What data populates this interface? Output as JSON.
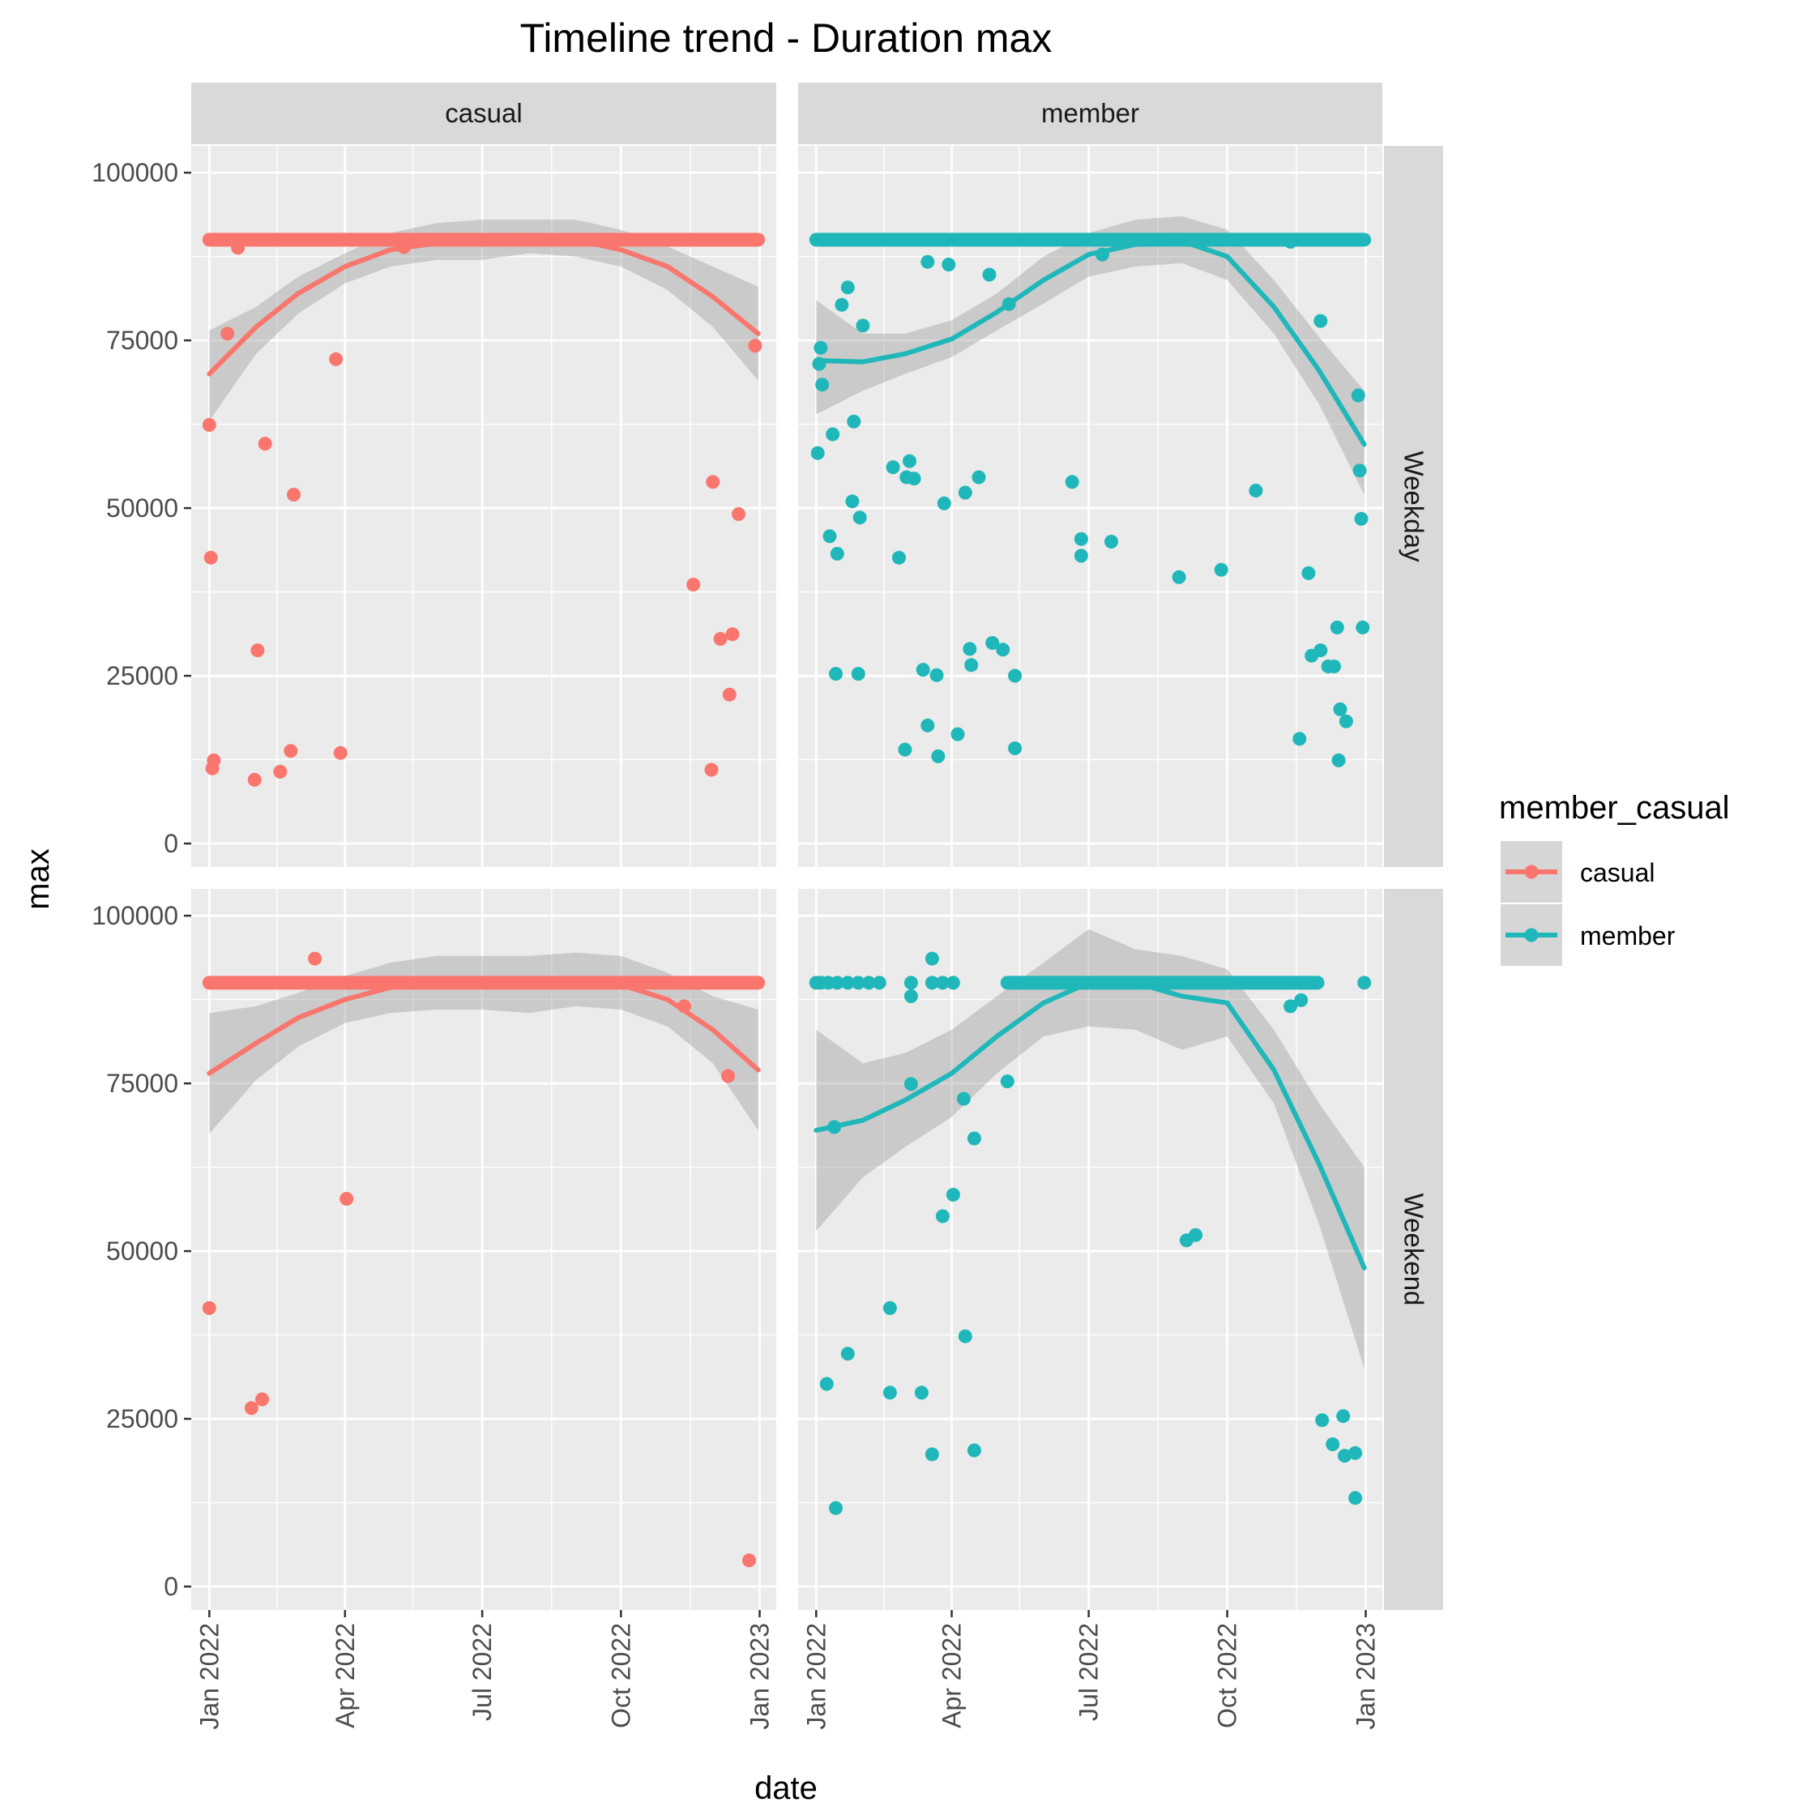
{
  "chart_data": {
    "type": "scatter",
    "title": "Timeline trend - Duration max",
    "xlabel": "date",
    "ylabel": "max",
    "facet_columns": [
      "casual",
      "member"
    ],
    "facet_rows": [
      "Weekday",
      "Weekend"
    ],
    "x_ticks": [
      "Jan 2022",
      "Apr 2022",
      "Jul 2022",
      "Oct 2022",
      "Jan 2023"
    ],
    "x_range": [
      "2021-12-20",
      "2023-01-12"
    ],
    "y_ticks": [
      "0",
      "25000",
      "50000",
      "75000",
      "100000"
    ],
    "ylim": [
      -3500,
      104000
    ],
    "grid": true,
    "smoothing": "loess with confidence band",
    "legend": {
      "title": "member_casual",
      "position": "right",
      "entries": [
        "casual",
        "member"
      ]
    },
    "colors": {
      "casual": "#f8766d",
      "member": "#1fb7b9",
      "panel_background": "#ebebeb",
      "strip_background": "#d9d9d9",
      "band": "#999999"
    },
    "panels": [
      {
        "column": "casual",
        "row": "Weekday",
        "series": "casual",
        "flat_line": {
          "y": 90000,
          "from": "2022-01-01",
          "to": "2022-12-31"
        },
        "points": [
          {
            "x": "2022-01-01",
            "y": 62400
          },
          {
            "x": "2022-01-02",
            "y": 42600
          },
          {
            "x": "2022-01-03",
            "y": 11200
          },
          {
            "x": "2022-01-04",
            "y": 12400
          },
          {
            "x": "2022-01-13",
            "y": 76000
          },
          {
            "x": "2022-01-20",
            "y": 88800
          },
          {
            "x": "2022-01-31",
            "y": 9500
          },
          {
            "x": "2022-02-02",
            "y": 28800
          },
          {
            "x": "2022-02-07",
            "y": 59600
          },
          {
            "x": "2022-02-17",
            "y": 10700
          },
          {
            "x": "2022-02-24",
            "y": 13800
          },
          {
            "x": "2022-02-26",
            "y": 52000
          },
          {
            "x": "2022-03-26",
            "y": 72200
          },
          {
            "x": "2022-03-29",
            "y": 13500
          },
          {
            "x": "2022-05-10",
            "y": 88900
          },
          {
            "x": "2022-11-18",
            "y": 38600
          },
          {
            "x": "2022-11-30",
            "y": 11000
          },
          {
            "x": "2022-12-01",
            "y": 53900
          },
          {
            "x": "2022-12-06",
            "y": 30500
          },
          {
            "x": "2022-12-12",
            "y": 22200
          },
          {
            "x": "2022-12-14",
            "y": 31200
          },
          {
            "x": "2022-12-18",
            "y": 49100
          },
          {
            "x": "2022-12-29",
            "y": 74200
          }
        ],
        "smooth": [
          {
            "x": "2022-01-01",
            "y": 70000,
            "lo": 63000,
            "hi": 76500
          },
          {
            "x": "2022-02-01",
            "y": 77000,
            "lo": 73000,
            "hi": 80000
          },
          {
            "x": "2022-03-01",
            "y": 82000,
            "lo": 79000,
            "hi": 84500
          },
          {
            "x": "2022-04-01",
            "y": 86000,
            "lo": 83500,
            "hi": 88000
          },
          {
            "x": "2022-05-01",
            "y": 88500,
            "lo": 86000,
            "hi": 91000
          },
          {
            "x": "2022-06-01",
            "y": 89500,
            "lo": 87000,
            "hi": 92500
          },
          {
            "x": "2022-07-01",
            "y": 90000,
            "lo": 87000,
            "hi": 93000
          },
          {
            "x": "2022-08-01",
            "y": 90200,
            "lo": 88000,
            "hi": 93000
          },
          {
            "x": "2022-09-01",
            "y": 90000,
            "lo": 87500,
            "hi": 93000
          },
          {
            "x": "2022-10-01",
            "y": 88500,
            "lo": 86000,
            "hi": 91500
          },
          {
            "x": "2022-11-01",
            "y": 86000,
            "lo": 82500,
            "hi": 89000
          },
          {
            "x": "2022-12-01",
            "y": 81500,
            "lo": 77000,
            "hi": 86000
          },
          {
            "x": "2022-12-31",
            "y": 76000,
            "lo": 69000,
            "hi": 83000
          }
        ]
      },
      {
        "column": "member",
        "row": "Weekday",
        "series": "member",
        "flat_line": {
          "y": 90000,
          "from": "2022-01-01",
          "to": "2022-12-31"
        },
        "points": [
          {
            "x": "2022-01-02",
            "y": 58200
          },
          {
            "x": "2022-01-03",
            "y": 71500
          },
          {
            "x": "2022-01-04",
            "y": 73900
          },
          {
            "x": "2022-01-05",
            "y": 68400
          },
          {
            "x": "2022-01-10",
            "y": 45800
          },
          {
            "x": "2022-01-12",
            "y": 61000
          },
          {
            "x": "2022-01-14",
            "y": 25300
          },
          {
            "x": "2022-01-15",
            "y": 43200
          },
          {
            "x": "2022-01-18",
            "y": 80300
          },
          {
            "x": "2022-01-22",
            "y": 82900
          },
          {
            "x": "2022-01-25",
            "y": 51000
          },
          {
            "x": "2022-01-26",
            "y": 62900
          },
          {
            "x": "2022-01-29",
            "y": 25300
          },
          {
            "x": "2022-01-30",
            "y": 48600
          },
          {
            "x": "2022-02-01",
            "y": 77200
          },
          {
            "x": "2022-02-21",
            "y": 56100
          },
          {
            "x": "2022-02-25",
            "y": 42600
          },
          {
            "x": "2022-03-01",
            "y": 14000
          },
          {
            "x": "2022-03-02",
            "y": 54600
          },
          {
            "x": "2022-03-04",
            "y": 57000
          },
          {
            "x": "2022-03-07",
            "y": 54400
          },
          {
            "x": "2022-03-13",
            "y": 25900
          },
          {
            "x": "2022-03-16",
            "y": 86700
          },
          {
            "x": "2022-03-16",
            "y": 17600
          },
          {
            "x": "2022-03-22",
            "y": 25100
          },
          {
            "x": "2022-03-23",
            "y": 13000
          },
          {
            "x": "2022-03-27",
            "y": 50700
          },
          {
            "x": "2022-03-30",
            "y": 86300
          },
          {
            "x": "2022-04-05",
            "y": 16300
          },
          {
            "x": "2022-04-10",
            "y": 52300
          },
          {
            "x": "2022-04-13",
            "y": 29000
          },
          {
            "x": "2022-04-14",
            "y": 26600
          },
          {
            "x": "2022-04-19",
            "y": 54600
          },
          {
            "x": "2022-04-26",
            "y": 84800
          },
          {
            "x": "2022-04-28",
            "y": 29900
          },
          {
            "x": "2022-05-05",
            "y": 28900
          },
          {
            "x": "2022-05-09",
            "y": 80400
          },
          {
            "x": "2022-05-13",
            "y": 25000
          },
          {
            "x": "2022-05-13",
            "y": 14200
          },
          {
            "x": "2022-06-20",
            "y": 53900
          },
          {
            "x": "2022-06-26",
            "y": 45400
          },
          {
            "x": "2022-06-26",
            "y": 42900
          },
          {
            "x": "2022-07-10",
            "y": 87800
          },
          {
            "x": "2022-07-16",
            "y": 45000
          },
          {
            "x": "2022-08-30",
            "y": 39700
          },
          {
            "x": "2022-09-27",
            "y": 40800
          },
          {
            "x": "2022-10-20",
            "y": 52600
          },
          {
            "x": "2022-11-12",
            "y": 89700
          },
          {
            "x": "2022-11-18",
            "y": 15600
          },
          {
            "x": "2022-11-24",
            "y": 40300
          },
          {
            "x": "2022-11-26",
            "y": 28000
          },
          {
            "x": "2022-12-02",
            "y": 77900
          },
          {
            "x": "2022-12-02",
            "y": 28800
          },
          {
            "x": "2022-12-07",
            "y": 26400
          },
          {
            "x": "2022-12-11",
            "y": 26400
          },
          {
            "x": "2022-12-13",
            "y": 32200
          },
          {
            "x": "2022-12-14",
            "y": 12400
          },
          {
            "x": "2022-12-15",
            "y": 20000
          },
          {
            "x": "2022-12-19",
            "y": 18200
          },
          {
            "x": "2022-12-27",
            "y": 66800
          },
          {
            "x": "2022-12-28",
            "y": 55600
          },
          {
            "x": "2022-12-29",
            "y": 48400
          },
          {
            "x": "2022-12-30",
            "y": 32200
          }
        ],
        "smooth": [
          {
            "x": "2022-01-01",
            "y": 72000,
            "lo": 64000,
            "hi": 81000
          },
          {
            "x": "2022-02-01",
            "y": 71800,
            "lo": 67500,
            "hi": 76000
          },
          {
            "x": "2022-03-01",
            "y": 73000,
            "lo": 70000,
            "hi": 76000
          },
          {
            "x": "2022-04-01",
            "y": 75200,
            "lo": 72500,
            "hi": 78000
          },
          {
            "x": "2022-05-01",
            "y": 79200,
            "lo": 76500,
            "hi": 82000
          },
          {
            "x": "2022-06-01",
            "y": 84000,
            "lo": 80500,
            "hi": 87500
          },
          {
            "x": "2022-07-01",
            "y": 87800,
            "lo": 84500,
            "hi": 91000
          },
          {
            "x": "2022-08-01",
            "y": 89300,
            "lo": 86000,
            "hi": 93000
          },
          {
            "x": "2022-09-01",
            "y": 89800,
            "lo": 86500,
            "hi": 93500
          },
          {
            "x": "2022-10-01",
            "y": 87500,
            "lo": 84000,
            "hi": 91500
          },
          {
            "x": "2022-11-01",
            "y": 80000,
            "lo": 76000,
            "hi": 84000
          },
          {
            "x": "2022-12-01",
            "y": 70500,
            "lo": 65500,
            "hi": 75500
          },
          {
            "x": "2022-12-31",
            "y": 59500,
            "lo": 52000,
            "hi": 67500
          }
        ]
      },
      {
        "column": "casual",
        "row": "Weekend",
        "series": "casual",
        "flat_line": {
          "y": 90000,
          "from": "2022-01-01",
          "to": "2022-12-31"
        },
        "points": [
          {
            "x": "2022-01-01",
            "y": 41500
          },
          {
            "x": "2022-01-29",
            "y": 26600
          },
          {
            "x": "2022-02-05",
            "y": 27900
          },
          {
            "x": "2022-03-12",
            "y": 93600
          },
          {
            "x": "2022-04-02",
            "y": 57800
          },
          {
            "x": "2022-11-12",
            "y": 86500
          },
          {
            "x": "2022-12-11",
            "y": 76100
          },
          {
            "x": "2022-12-25",
            "y": 3900
          }
        ],
        "smooth": [
          {
            "x": "2022-01-01",
            "y": 76500,
            "lo": 67500,
            "hi": 85500
          },
          {
            "x": "2022-02-01",
            "y": 81000,
            "lo": 75500,
            "hi": 86500
          },
          {
            "x": "2022-03-01",
            "y": 84800,
            "lo": 80500,
            "hi": 88500
          },
          {
            "x": "2022-04-01",
            "y": 87500,
            "lo": 84000,
            "hi": 91000
          },
          {
            "x": "2022-05-01",
            "y": 89300,
            "lo": 85500,
            "hi": 93000
          },
          {
            "x": "2022-06-01",
            "y": 90000,
            "lo": 86000,
            "hi": 94000
          },
          {
            "x": "2022-07-01",
            "y": 90200,
            "lo": 86000,
            "hi": 94000
          },
          {
            "x": "2022-08-01",
            "y": 90200,
            "lo": 85500,
            "hi": 94000
          },
          {
            "x": "2022-09-01",
            "y": 90500,
            "lo": 86500,
            "hi": 94500
          },
          {
            "x": "2022-10-01",
            "y": 89700,
            "lo": 86000,
            "hi": 94000
          },
          {
            "x": "2022-11-01",
            "y": 87500,
            "lo": 83500,
            "hi": 91500
          },
          {
            "x": "2022-12-01",
            "y": 83000,
            "lo": 78000,
            "hi": 88000
          },
          {
            "x": "2022-12-31",
            "y": 77000,
            "lo": 68000,
            "hi": 86000
          }
        ]
      },
      {
        "column": "member",
        "row": "Weekend",
        "series": "member",
        "flat_line": {
          "y": 90000,
          "from": "2022-05-08",
          "to": "2022-11-30"
        },
        "points": [
          {
            "x": "2022-01-01",
            "y": 90000
          },
          {
            "x": "2022-01-04",
            "y": 90000
          },
          {
            "x": "2022-01-09",
            "y": 90000
          },
          {
            "x": "2022-01-15",
            "y": 90000
          },
          {
            "x": "2022-01-22",
            "y": 90000
          },
          {
            "x": "2022-01-29",
            "y": 90000
          },
          {
            "x": "2022-02-05",
            "y": 90000
          },
          {
            "x": "2022-02-12",
            "y": 90000
          },
          {
            "x": "2022-03-05",
            "y": 90000
          },
          {
            "x": "2022-03-19",
            "y": 90000
          },
          {
            "x": "2022-03-26",
            "y": 90000
          },
          {
            "x": "2022-04-02",
            "y": 90000
          },
          {
            "x": "2022-12-31",
            "y": 90000
          },
          {
            "x": "2022-01-08",
            "y": 30200
          },
          {
            "x": "2022-01-13",
            "y": 68500
          },
          {
            "x": "2022-01-14",
            "y": 11700
          },
          {
            "x": "2022-01-22",
            "y": 34700
          },
          {
            "x": "2022-02-19",
            "y": 41500
          },
          {
            "x": "2022-02-19",
            "y": 28900
          },
          {
            "x": "2022-03-05",
            "y": 88000
          },
          {
            "x": "2022-03-05",
            "y": 74900
          },
          {
            "x": "2022-03-12",
            "y": 28900
          },
          {
            "x": "2022-03-19",
            "y": 93600
          },
          {
            "x": "2022-03-19",
            "y": 19700
          },
          {
            "x": "2022-03-26",
            "y": 55200
          },
          {
            "x": "2022-04-02",
            "y": 58400
          },
          {
            "x": "2022-04-09",
            "y": 72700
          },
          {
            "x": "2022-04-10",
            "y": 37300
          },
          {
            "x": "2022-04-16",
            "y": 66800
          },
          {
            "x": "2022-04-16",
            "y": 20300
          },
          {
            "x": "2022-05-08",
            "y": 75300
          },
          {
            "x": "2022-09-04",
            "y": 51600
          },
          {
            "x": "2022-09-10",
            "y": 52400
          },
          {
            "x": "2022-11-12",
            "y": 86500
          },
          {
            "x": "2022-11-19",
            "y": 87400
          },
          {
            "x": "2022-12-03",
            "y": 24800
          },
          {
            "x": "2022-12-10",
            "y": 21200
          },
          {
            "x": "2022-12-17",
            "y": 25400
          },
          {
            "x": "2022-12-18",
            "y": 19500
          },
          {
            "x": "2022-12-25",
            "y": 13200
          },
          {
            "x": "2022-12-25",
            "y": 19900
          }
        ],
        "smooth": [
          {
            "x": "2022-01-01",
            "y": 68000,
            "lo": 53000,
            "hi": 83000
          },
          {
            "x": "2022-02-01",
            "y": 69500,
            "lo": 61000,
            "hi": 78000
          },
          {
            "x": "2022-03-01",
            "y": 72500,
            "lo": 65500,
            "hi": 79500
          },
          {
            "x": "2022-04-01",
            "y": 76500,
            "lo": 70000,
            "hi": 83000
          },
          {
            "x": "2022-05-01",
            "y": 82000,
            "lo": 76500,
            "hi": 88000
          },
          {
            "x": "2022-06-01",
            "y": 87000,
            "lo": 82000,
            "hi": 93000
          },
          {
            "x": "2022-07-01",
            "y": 90000,
            "lo": 83500,
            "hi": 98000
          },
          {
            "x": "2022-08-01",
            "y": 90000,
            "lo": 83000,
            "hi": 95000
          },
          {
            "x": "2022-09-01",
            "y": 88000,
            "lo": 80000,
            "hi": 94000
          },
          {
            "x": "2022-10-01",
            "y": 87000,
            "lo": 82000,
            "hi": 92000
          },
          {
            "x": "2022-11-01",
            "y": 77000,
            "lo": 72000,
            "hi": 83000
          },
          {
            "x": "2022-12-01",
            "y": 63000,
            "lo": 54000,
            "hi": 72000
          },
          {
            "x": "2022-12-31",
            "y": 47500,
            "lo": 32500,
            "hi": 62500
          }
        ]
      }
    ]
  }
}
